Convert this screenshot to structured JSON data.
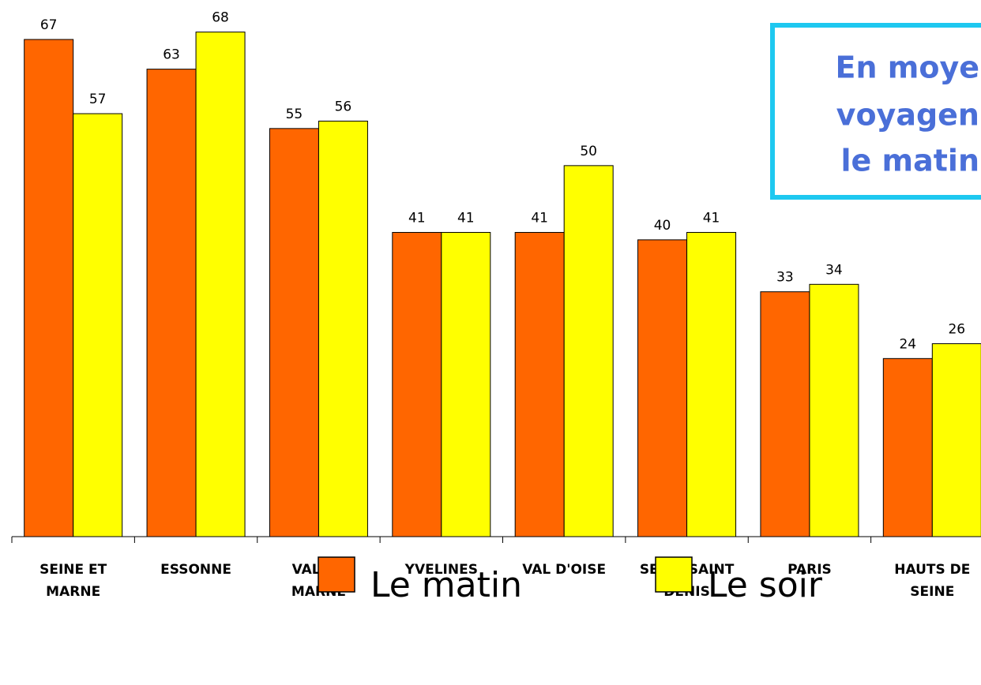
{
  "chart_data": {
    "type": "bar",
    "categories": [
      "SEINE ET\nMARNE",
      "ESSONNE",
      "VAL DE\nMARNE",
      "YVELINES",
      "VAL D'OISE",
      "SEINE SAINT\nDENIS",
      "PARIS",
      "HAUTS DE\nSEINE"
    ],
    "series": [
      {
        "name": "Le matin",
        "color": "#ff6600",
        "values": [
          67,
          63,
          55,
          41,
          41,
          40,
          33,
          24
        ]
      },
      {
        "name": "Le soir",
        "color": "#ffff00",
        "values": [
          57,
          68,
          56,
          41,
          50,
          41,
          34,
          26
        ]
      }
    ],
    "ylim": [
      0,
      72
    ],
    "annotation": [
      "En moye",
      "voyagen",
      "le matin"
    ]
  }
}
